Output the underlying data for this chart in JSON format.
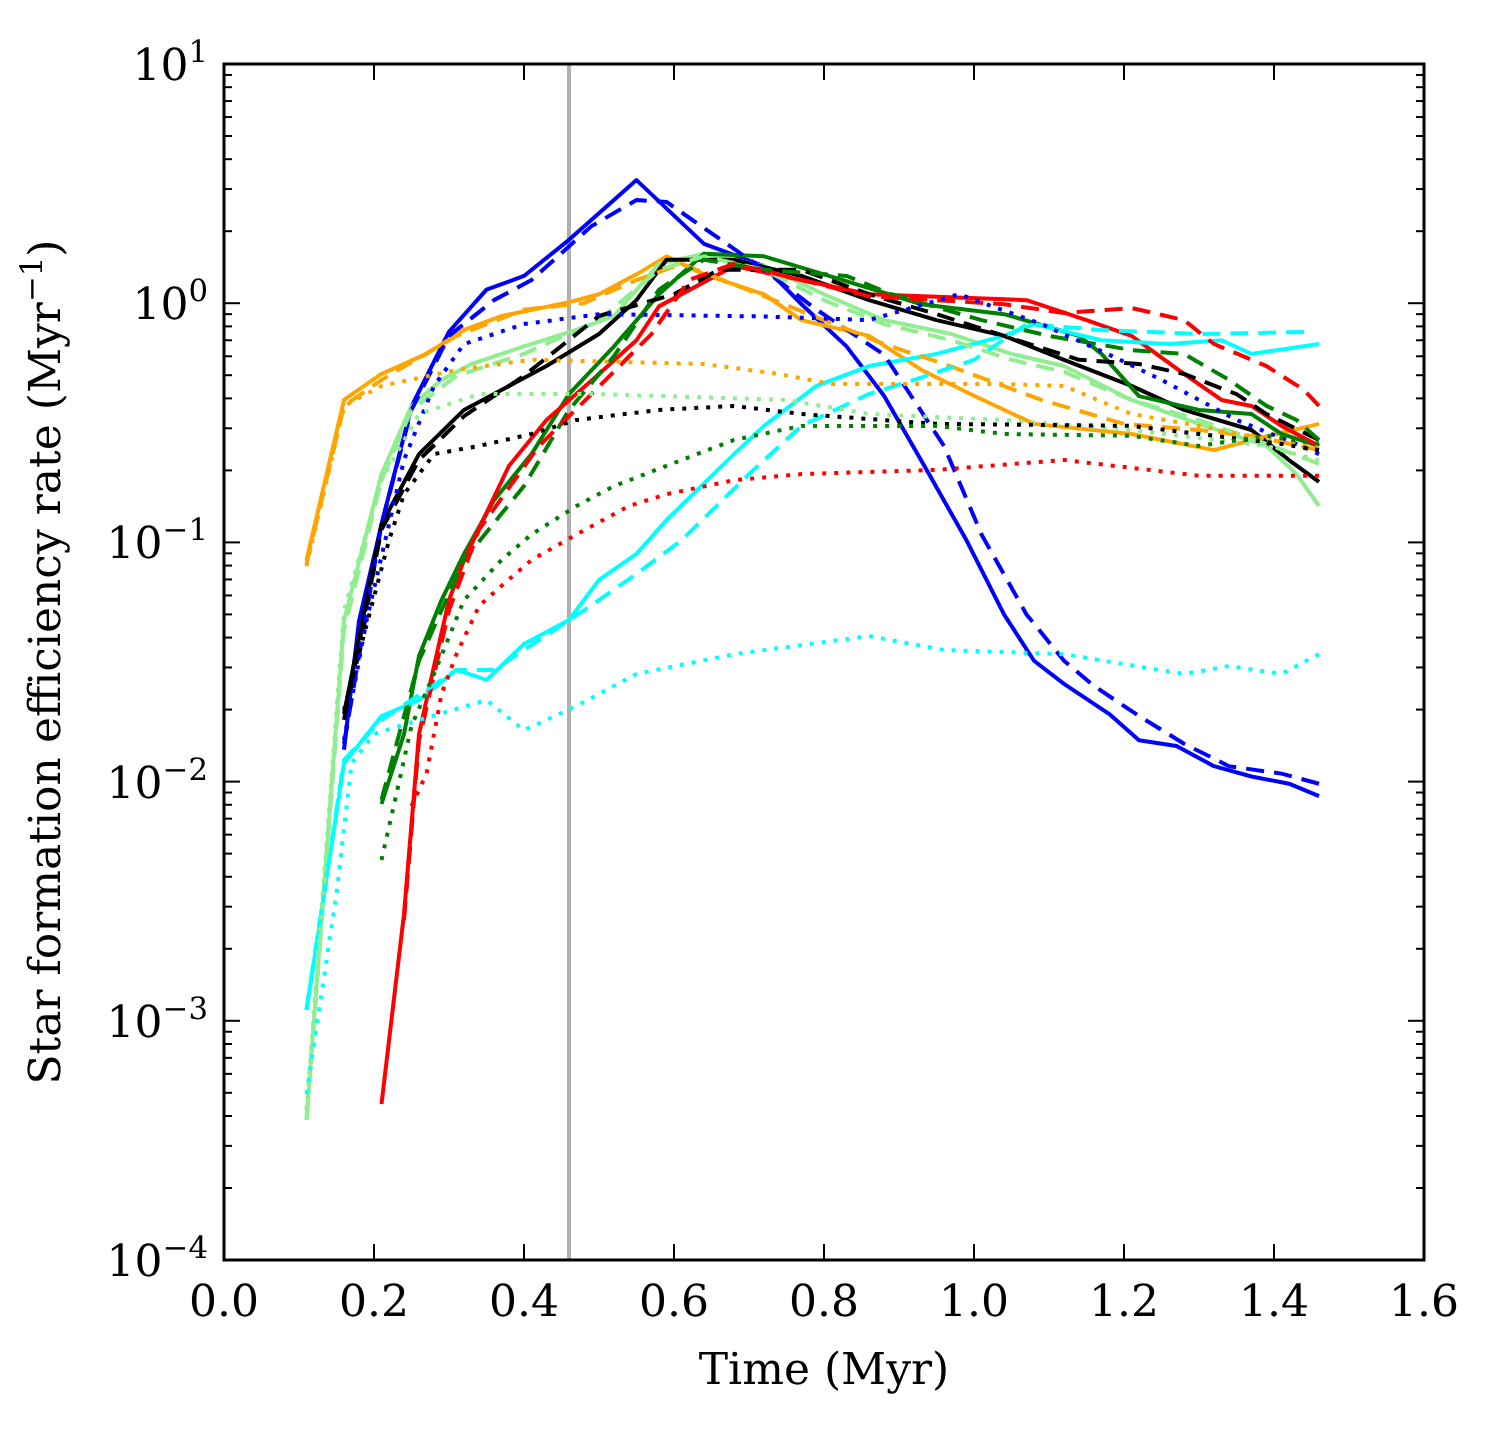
{
  "chart_data": {
    "type": "line",
    "xlabel": "Time (Myr)",
    "ylabel": "Star formation efficiency rate (Myr$^{−1}$)",
    "log": "y",
    "xlim": [
      0,
      1.6
    ],
    "ylim": [
      0.0001,
      10
    ],
    "xticks": [
      {
        "value": 0,
        "label": "0.0"
      },
      {
        "value": 0.2,
        "label": "0.2"
      },
      {
        "value": 0.4,
        "label": "0.4"
      },
      {
        "value": 0.6,
        "label": "0.6"
      },
      {
        "value": 0.8,
        "label": "0.8"
      },
      {
        "value": 1,
        "label": "1.0"
      },
      {
        "value": 1.2,
        "label": "1.2"
      },
      {
        "value": 1.4,
        "label": "1.4"
      },
      {
        "value": 1.6,
        "label": "1.6"
      }
    ],
    "yticks": [
      {
        "value": 0.0001,
        "label": "10$^{−4}$"
      },
      {
        "value": 0.0002,
        "label": null
      },
      {
        "value": 0.0003,
        "label": null
      },
      {
        "value": 0.0004,
        "label": null
      },
      {
        "value": 0.0005,
        "label": null
      },
      {
        "value": 0.0006,
        "label": null
      },
      {
        "value": 0.0007,
        "label": null
      },
      {
        "value": 0.0008,
        "label": null
      },
      {
        "value": 0.0009,
        "label": null
      },
      {
        "value": 0.001,
        "label": "10$^{−3}$"
      },
      {
        "value": 0.002,
        "label": null
      },
      {
        "value": 0.003,
        "label": null
      },
      {
        "value": 0.004,
        "label": null
      },
      {
        "value": 0.005,
        "label": null
      },
      {
        "value": 0.006,
        "label": null
      },
      {
        "value": 0.007,
        "label": null
      },
      {
        "value": 0.008,
        "label": null
      },
      {
        "value": 0.009,
        "label": null
      },
      {
        "value": 0.01,
        "label": "10$^{−2}$"
      },
      {
        "value": 0.02,
        "label": null
      },
      {
        "value": 0.03,
        "label": null
      },
      {
        "value": 0.04,
        "label": null
      },
      {
        "value": 0.05,
        "label": null
      },
      {
        "value": 0.06,
        "label": null
      },
      {
        "value": 0.07,
        "label": null
      },
      {
        "value": 0.08,
        "label": null
      },
      {
        "value": 0.09,
        "label": null
      },
      {
        "value": 0.1,
        "label": "10$^{−1}$"
      },
      {
        "value": 0.2,
        "label": null
      },
      {
        "value": 0.3,
        "label": null
      },
      {
        "value": 0.4,
        "label": null
      },
      {
        "value": 0.5,
        "label": null
      },
      {
        "value": 0.6,
        "label": null
      },
      {
        "value": 0.7,
        "label": null
      },
      {
        "value": 0.8,
        "label": null
      },
      {
        "value": 0.9,
        "label": null
      },
      {
        "value": 1,
        "label": "10$^{0}$"
      },
      {
        "value": 2,
        "label": null
      },
      {
        "value": 3,
        "label": null
      },
      {
        "value": 4,
        "label": null
      },
      {
        "value": 5,
        "label": null
      },
      {
        "value": 6,
        "label": null
      },
      {
        "value": 7,
        "label": null
      },
      {
        "value": 8,
        "label": null
      },
      {
        "value": 9,
        "label": null
      },
      {
        "value": 10,
        "label": "10$^{1}$"
      }
    ],
    "ref_lines": [
      {
        "axis": "x",
        "value": 0.46,
        "color": "#b0b0b0"
      }
    ],
    "series": [
      {
        "color": "#0000ff",
        "line_style": "solid",
        "x": [
          0.16,
          0.18,
          0.21,
          0.25,
          0.3,
          0.35,
          0.4,
          0.46,
          0.55,
          0.64,
          0.72,
          0.77,
          0.83,
          0.88,
          0.94,
          0.99,
          1.04,
          1.08,
          1.12,
          1.18,
          1.22,
          1.27,
          1.32,
          1.37,
          1.42,
          1.46
        ],
        "values": [
          0.0136,
          0.047,
          0.119,
          0.37,
          0.76,
          1.14,
          1.3,
          1.84,
          3.27,
          1.77,
          1.43,
          0.99,
          0.66,
          0.41,
          0.193,
          0.102,
          0.05,
          0.032,
          0.0256,
          0.0192,
          0.0149,
          0.0141,
          0.0116,
          0.0105,
          0.0098,
          0.0087
        ]
      },
      {
        "color": "#0000ff",
        "line_style": "dashed",
        "x": [
          0.16,
          0.21,
          0.25,
          0.3,
          0.36,
          0.41,
          0.49,
          0.55,
          0.59,
          0.72,
          0.79,
          0.88,
          0.96,
          1.01,
          1.07,
          1.12,
          1.16,
          1.22,
          1.28,
          1.34,
          1.41,
          1.46
        ],
        "values": [
          0.0144,
          0.119,
          0.358,
          0.73,
          1.03,
          1.25,
          2.1,
          2.7,
          2.65,
          1.38,
          0.94,
          0.61,
          0.253,
          0.108,
          0.05,
          0.032,
          0.0251,
          0.0188,
          0.0144,
          0.0116,
          0.0108,
          0.0098
        ]
      },
      {
        "color": "#0000ff",
        "line_style": "dotted",
        "x": [
          0.16,
          0.19,
          0.24,
          0.28,
          0.32,
          0.4,
          0.5,
          0.72,
          0.86,
          0.98,
          1.09,
          1.18,
          1.25,
          1.35,
          1.43,
          1.46
        ],
        "values": [
          0.0149,
          0.047,
          0.221,
          0.451,
          0.675,
          0.818,
          0.9,
          0.88,
          0.85,
          1.09,
          0.818,
          0.61,
          0.478,
          0.325,
          0.258,
          0.234
        ]
      },
      {
        "color": "#ffa500",
        "line_style": "solid",
        "x": [
          0.11,
          0.16,
          0.21,
          0.27,
          0.32,
          0.37,
          0.46,
          0.5,
          0.55,
          0.59,
          0.64,
          0.72,
          0.77,
          0.86,
          0.93,
          1.0,
          1.08,
          1.21,
          1.32,
          1.37,
          1.46
        ],
        "values": [
          0.0844,
          0.394,
          0.506,
          0.614,
          0.773,
          0.884,
          1.01,
          1.09,
          1.32,
          1.57,
          1.32,
          1.09,
          0.85,
          0.73,
          0.526,
          0.41,
          0.313,
          0.284,
          0.243,
          0.268,
          0.313
        ]
      },
      {
        "color": "#ffa500",
        "line_style": "dashed",
        "x": [
          0.11,
          0.16,
          0.21,
          0.31,
          0.4,
          0.48,
          0.55,
          0.61,
          0.72,
          0.88,
          0.96,
          1.09,
          1.2,
          1.3,
          1.37,
          1.46
        ],
        "values": [
          0.0813,
          0.372,
          0.478,
          0.73,
          0.94,
          1.0,
          1.25,
          1.46,
          1.07,
          0.675,
          0.557,
          0.394,
          0.313,
          0.295,
          0.279,
          0.243
        ]
      },
      {
        "color": "#ffa500",
        "line_style": "dotted",
        "x": [
          0.11,
          0.16,
          0.21,
          0.31,
          0.41,
          0.64,
          0.74,
          0.81,
          1.04,
          1.12,
          1.21,
          1.3,
          1.39,
          1.46
        ],
        "values": [
          0.0796,
          0.372,
          0.451,
          0.526,
          0.58,
          0.557,
          0.506,
          0.459,
          0.459,
          0.451,
          0.344,
          0.307,
          0.268,
          0.25
        ]
      },
      {
        "color": "#90ee90",
        "line_style": "solid",
        "x": [
          0.11,
          0.16,
          0.21,
          0.25,
          0.29,
          0.33,
          0.4,
          0.47,
          0.52,
          0.58,
          0.64,
          0.72,
          0.8,
          0.88,
          0.97,
          1.05,
          1.12,
          1.21,
          1.3,
          1.39,
          1.43,
          1.46
        ],
        "values": [
          0.000385,
          0.047,
          0.193,
          0.372,
          0.478,
          0.557,
          0.66,
          0.773,
          0.884,
          1.46,
          1.61,
          1.43,
          1.09,
          0.85,
          0.743,
          0.614,
          0.546,
          0.394,
          0.313,
          0.253,
          0.193,
          0.142
        ]
      },
      {
        "color": "#90ee90",
        "line_style": "dashed",
        "x": [
          0.11,
          0.16,
          0.21,
          0.25,
          0.31,
          0.4,
          0.5,
          0.58,
          0.64,
          0.72,
          0.8,
          0.88,
          0.97,
          1.05,
          1.12,
          1.21,
          1.3,
          1.39,
          1.46
        ],
        "values": [
          0.000385,
          0.043,
          0.182,
          0.358,
          0.497,
          0.614,
          0.85,
          1.38,
          1.57,
          1.38,
          1.03,
          0.818,
          0.7,
          0.58,
          0.516,
          0.394,
          0.325,
          0.258,
          0.213
        ]
      },
      {
        "color": "#90ee90",
        "line_style": "dotted",
        "x": [
          0.11,
          0.16,
          0.21,
          0.26,
          0.34,
          0.5,
          0.75,
          0.86,
          1.04,
          1.21,
          1.39,
          1.46
        ],
        "values": [
          0.000424,
          0.052,
          0.182,
          0.344,
          0.417,
          0.417,
          0.394,
          0.344,
          0.325,
          0.295,
          0.253,
          0.22
        ]
      },
      {
        "color": "#000000",
        "line_style": "solid",
        "x": [
          0.16,
          0.21,
          0.26,
          0.32,
          0.38,
          0.43,
          0.5,
          0.55,
          0.59,
          0.68,
          0.77,
          0.86,
          0.95,
          1.04,
          1.12,
          1.21,
          1.28,
          1.37,
          1.42,
          1.46
        ],
        "values": [
          0.0192,
          0.119,
          0.234,
          0.358,
          0.451,
          0.546,
          0.743,
          1.03,
          1.52,
          1.52,
          1.3,
          1.03,
          0.85,
          0.73,
          0.58,
          0.451,
          0.358,
          0.295,
          0.221,
          0.179
        ]
      },
      {
        "color": "#000000",
        "line_style": "dashed",
        "x": [
          0.16,
          0.21,
          0.26,
          0.32,
          0.4,
          0.5,
          0.6,
          0.66,
          0.77,
          0.86,
          0.95,
          1.04,
          1.14,
          1.22,
          1.28,
          1.35,
          1.39,
          1.46
        ],
        "values": [
          0.0181,
          0.113,
          0.221,
          0.337,
          0.497,
          0.884,
          1.09,
          1.38,
          1.38,
          1.09,
          0.9,
          0.73,
          0.58,
          0.557,
          0.506,
          0.417,
          0.344,
          0.268
        ]
      },
      {
        "color": "#000000",
        "line_style": "dotted",
        "x": [
          0.16,
          0.22,
          0.24,
          0.28,
          0.34,
          0.41,
          0.47,
          0.58,
          0.68,
          0.77,
          0.95,
          1.21,
          1.3,
          1.41,
          1.46
        ],
        "values": [
          0.0199,
          0.102,
          0.159,
          0.234,
          0.253,
          0.284,
          0.325,
          0.358,
          0.372,
          0.344,
          0.313,
          0.307,
          0.284,
          0.258,
          0.243
        ]
      },
      {
        "color": "#008000",
        "line_style": "solid",
        "x": [
          0.21,
          0.24,
          0.26,
          0.29,
          0.32,
          0.36,
          0.41,
          0.46,
          0.52,
          0.58,
          0.64,
          0.72,
          0.8,
          0.93,
          1.04,
          1.14,
          1.17,
          1.22,
          1.3,
          1.37,
          1.41,
          1.46
        ],
        "values": [
          0.00806,
          0.0158,
          0.0335,
          0.0574,
          0.0895,
          0.15,
          0.234,
          0.417,
          0.66,
          1.09,
          1.61,
          1.57,
          1.32,
          0.99,
          0.9,
          0.73,
          0.614,
          0.409,
          0.358,
          0.344,
          0.284,
          0.253
        ]
      },
      {
        "color": "#008000",
        "line_style": "dashed",
        "x": [
          0.21,
          0.26,
          0.32,
          0.4,
          0.46,
          0.52,
          0.58,
          0.64,
          0.72,
          0.83,
          0.89,
          1.01,
          1.1,
          1.21,
          1.28,
          1.34,
          1.39,
          1.43,
          1.46
        ],
        "values": [
          0.0084,
          0.032,
          0.0844,
          0.172,
          0.358,
          0.601,
          1.14,
          1.52,
          1.38,
          1.3,
          1.09,
          0.85,
          0.73,
          0.637,
          0.614,
          0.478,
          0.372,
          0.325,
          0.268
        ]
      },
      {
        "color": "#008000",
        "line_style": "dotted",
        "x": [
          0.21,
          0.23,
          0.25,
          0.28,
          0.32,
          0.37,
          0.41,
          0.47,
          0.52,
          0.59,
          0.68,
          0.77,
          0.95,
          1.04,
          1.21,
          1.3,
          1.39,
          1.46
        ],
        "values": [
          0.0047,
          0.0089,
          0.0171,
          0.0282,
          0.0574,
          0.0844,
          0.108,
          0.142,
          0.172,
          0.209,
          0.268,
          0.307,
          0.307,
          0.284,
          0.279,
          0.253,
          0.279,
          0.258
        ]
      },
      {
        "color": "#ff0000",
        "line_style": "solid",
        "x": [
          0.21,
          0.24,
          0.26,
          0.28,
          0.3,
          0.32,
          0.38,
          0.43,
          0.5,
          0.55,
          0.58,
          0.68,
          0.77,
          0.86,
          1.07,
          1.15,
          1.21,
          1.28,
          1.33,
          1.37,
          1.41,
          1.46
        ],
        "values": [
          0.000449,
          0.00279,
          0.0158,
          0.0304,
          0.0574,
          0.0844,
          0.209,
          0.325,
          0.506,
          0.7,
          0.97,
          1.43,
          1.25,
          1.09,
          1.03,
          0.85,
          0.73,
          0.506,
          0.394,
          0.372,
          0.307,
          0.253
        ]
      },
      {
        "color": "#ff0000",
        "line_style": "dashed",
        "x": [
          0.24,
          0.26,
          0.3,
          0.34,
          0.42,
          0.49,
          0.57,
          0.62,
          0.68,
          0.77,
          0.86,
          0.95,
          1.04,
          1.12,
          1.21,
          1.28,
          1.32,
          1.39,
          1.44,
          1.46
        ],
        "values": [
          0.00264,
          0.0149,
          0.052,
          0.113,
          0.253,
          0.417,
          0.743,
          1.25,
          1.46,
          1.25,
          1.07,
          1.03,
          0.99,
          0.91,
          0.955,
          0.85,
          0.675,
          0.546,
          0.434,
          0.372
        ]
      },
      {
        "color": "#ff0000",
        "line_style": "dotted",
        "x": [
          0.25,
          0.27,
          0.28,
          0.29,
          0.31,
          0.34,
          0.37,
          0.41,
          0.47,
          0.54,
          0.59,
          0.68,
          0.77,
          0.95,
          1.12,
          1.3,
          1.46
        ],
        "values": [
          0.0079,
          0.0108,
          0.0158,
          0.0232,
          0.0341,
          0.0542,
          0.0658,
          0.0844,
          0.108,
          0.142,
          0.159,
          0.182,
          0.193,
          0.201,
          0.221,
          0.19,
          0.19
        ]
      },
      {
        "color": "#00ffff",
        "line_style": "solid",
        "x": [
          0.11,
          0.16,
          0.21,
          0.26,
          0.31,
          0.35,
          0.4,
          0.46,
          0.5,
          0.55,
          0.59,
          0.68,
          0.72,
          0.79,
          0.86,
          0.95,
          1.04,
          1.08,
          1.17,
          1.26,
          1.33,
          1.37,
          1.46
        ],
        "values": [
          0.00111,
          0.0119,
          0.0188,
          0.0219,
          0.0293,
          0.0266,
          0.0376,
          0.0474,
          0.0697,
          0.0895,
          0.124,
          0.234,
          0.307,
          0.451,
          0.546,
          0.614,
          0.73,
          0.818,
          0.7,
          0.675,
          0.7,
          0.614,
          0.675
        ]
      },
      {
        "color": "#00ffff",
        "line_style": "dashed",
        "x": [
          0.11,
          0.16,
          0.21,
          0.31,
          0.36,
          0.4,
          0.48,
          0.55,
          0.61,
          0.7,
          0.77,
          0.86,
          0.92,
          1.0,
          1.07,
          1.17,
          1.3,
          1.44
        ],
        "values": [
          0.00111,
          0.0123,
          0.0181,
          0.0293,
          0.0293,
          0.0355,
          0.052,
          0.0738,
          0.102,
          0.193,
          0.307,
          0.417,
          0.478,
          0.58,
          0.818,
          0.773,
          0.743,
          0.758
        ]
      },
      {
        "color": "#00ffff",
        "line_style": "dotted",
        "x": [
          0.11,
          0.15,
          0.17,
          0.2,
          0.26,
          0.35,
          0.4,
          0.47,
          0.55,
          0.68,
          0.86,
          0.96,
          1.12,
          1.28,
          1.34,
          1.41,
          1.46
        ],
        "values": [
          0.000494,
          0.00339,
          0.0119,
          0.0158,
          0.0181,
          0.0219,
          0.0164,
          0.0207,
          0.0282,
          0.0341,
          0.0406,
          0.0355,
          0.0341,
          0.0282,
          0.0304,
          0.0282,
          0.0341
        ]
      }
    ]
  }
}
